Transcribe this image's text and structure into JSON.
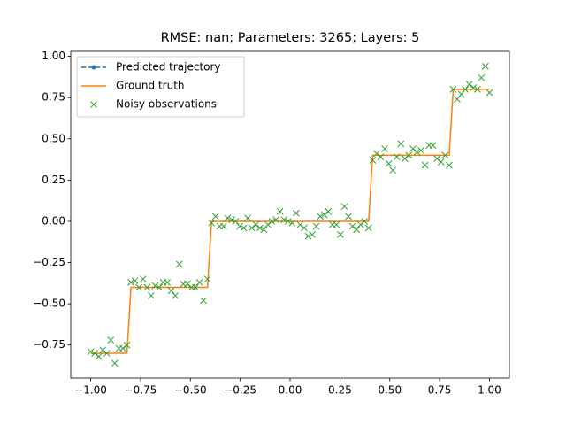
{
  "chart_data": {
    "type": "line",
    "title": "RMSE: nan; Parameters: 3265; Layers: 5",
    "xlim": [
      -1.1,
      1.1
    ],
    "ylim": [
      -0.95,
      1.03
    ],
    "xticks": [
      {
        "value": -1,
        "label": "−1.00"
      },
      {
        "value": -0.75,
        "label": "−0.75"
      },
      {
        "value": -0.5,
        "label": "−0.50"
      },
      {
        "value": -0.25,
        "label": "−0.25"
      },
      {
        "value": 0,
        "label": "0.00"
      },
      {
        "value": 0.25,
        "label": "0.25"
      },
      {
        "value": 0.5,
        "label": "0.50"
      },
      {
        "value": 0.75,
        "label": "0.75"
      },
      {
        "value": 1,
        "label": "1.00"
      }
    ],
    "yticks": [
      {
        "value": -0.75,
        "label": "−0.75"
      },
      {
        "value": -0.5,
        "label": "−0.50"
      },
      {
        "value": -0.25,
        "label": "−0.25"
      },
      {
        "value": 0,
        "label": "0.00"
      },
      {
        "value": 0.25,
        "label": "0.25"
      },
      {
        "value": 0.5,
        "label": "0.50"
      },
      {
        "value": 0.75,
        "label": "0.75"
      },
      {
        "value": 1,
        "label": "1.00"
      }
    ],
    "grid": false,
    "legend": "upper left",
    "series": [
      {
        "name": "Predicted trajectory",
        "color": "#1f77b4",
        "linestyle": "--",
        "marker": "o",
        "x": [],
        "values": []
      },
      {
        "name": "Ground truth",
        "color": "#ff7f0e",
        "linestyle": "-",
        "marker": "none",
        "x": [
          -1,
          -0.8182,
          -0.798,
          -0.4141,
          -0.3939,
          0.3939,
          0.4141,
          0.798,
          0.8182,
          1
        ],
        "values": [
          -0.8,
          -0.8,
          -0.4,
          -0.4,
          0,
          0,
          0.4,
          0.4,
          0.8,
          0.8
        ]
      },
      {
        "name": "Noisy observations",
        "color": "#2ca02c",
        "linestyle": "none",
        "marker": "x",
        "x": [
          -1,
          -0.9798,
          -0.9596,
          -0.9394,
          -0.9192,
          -0.899,
          -0.8788,
          -0.8586,
          -0.8384,
          -0.8182,
          -0.798,
          -0.7778,
          -0.7576,
          -0.7374,
          -0.7172,
          -0.697,
          -0.6768,
          -0.6566,
          -0.6364,
          -0.6162,
          -0.596,
          -0.5758,
          -0.5556,
          -0.5354,
          -0.5152,
          -0.4949,
          -0.4747,
          -0.4545,
          -0.4343,
          -0.4141,
          -0.3939,
          -0.3737,
          -0.3535,
          -0.3333,
          -0.3131,
          -0.2929,
          -0.2727,
          -0.2525,
          -0.2323,
          -0.2121,
          -0.1919,
          -0.1717,
          -0.1515,
          -0.1313,
          -0.1111,
          -0.0909,
          -0.0707,
          -0.0505,
          -0.0303,
          -0.0101,
          0.0101,
          0.0303,
          0.0505,
          0.0707,
          0.0909,
          0.1111,
          0.1313,
          0.1515,
          0.1717,
          0.1919,
          0.2121,
          0.2323,
          0.2525,
          0.2727,
          0.2929,
          0.3131,
          0.3333,
          0.3535,
          0.3737,
          0.3939,
          0.4141,
          0.4343,
          0.4545,
          0.4747,
          0.4949,
          0.5152,
          0.5354,
          0.5556,
          0.5758,
          0.596,
          0.6162,
          0.6364,
          0.6566,
          0.6768,
          0.697,
          0.7172,
          0.7374,
          0.7576,
          0.7778,
          0.798,
          0.8182,
          0.8384,
          0.8586,
          0.8788,
          0.899,
          0.9192,
          0.9394,
          0.9596,
          0.9798,
          1
        ],
        "values": [
          -0.79,
          -0.8,
          -0.82,
          -0.78,
          -0.8,
          -0.72,
          -0.86,
          -0.77,
          -0.77,
          -0.75,
          -0.37,
          -0.36,
          -0.4,
          -0.35,
          -0.4,
          -0.45,
          -0.39,
          -0.4,
          -0.37,
          -0.37,
          -0.42,
          -0.45,
          -0.26,
          -0.38,
          -0.38,
          -0.4,
          -0.4,
          -0.37,
          -0.48,
          -0.35,
          -0.01,
          0.03,
          -0.03,
          -0.03,
          0.02,
          0.01,
          0,
          -0.03,
          -0.04,
          0.02,
          -0.04,
          -0.02,
          -0.04,
          -0.05,
          -0.02,
          0,
          0.01,
          0.06,
          0.01,
          0,
          -0.01,
          0.05,
          -0.02,
          -0.04,
          -0.09,
          -0.08,
          -0.03,
          0.03,
          0.04,
          0.06,
          -0.02,
          -0.02,
          -0.08,
          0.09,
          0.03,
          -0.03,
          -0.05,
          -0.02,
          0,
          -0.04,
          0.37,
          0.41,
          0.39,
          0.44,
          0.35,
          0.31,
          0.39,
          0.47,
          0.38,
          0.4,
          0.44,
          0.42,
          0.43,
          0.34,
          0.46,
          0.46,
          0.38,
          0.36,
          0.4,
          0.34,
          0.8,
          0.74,
          0.77,
          0.8,
          0.83,
          0.81,
          0.8,
          0.87,
          0.94,
          0.78
        ]
      }
    ]
  }
}
